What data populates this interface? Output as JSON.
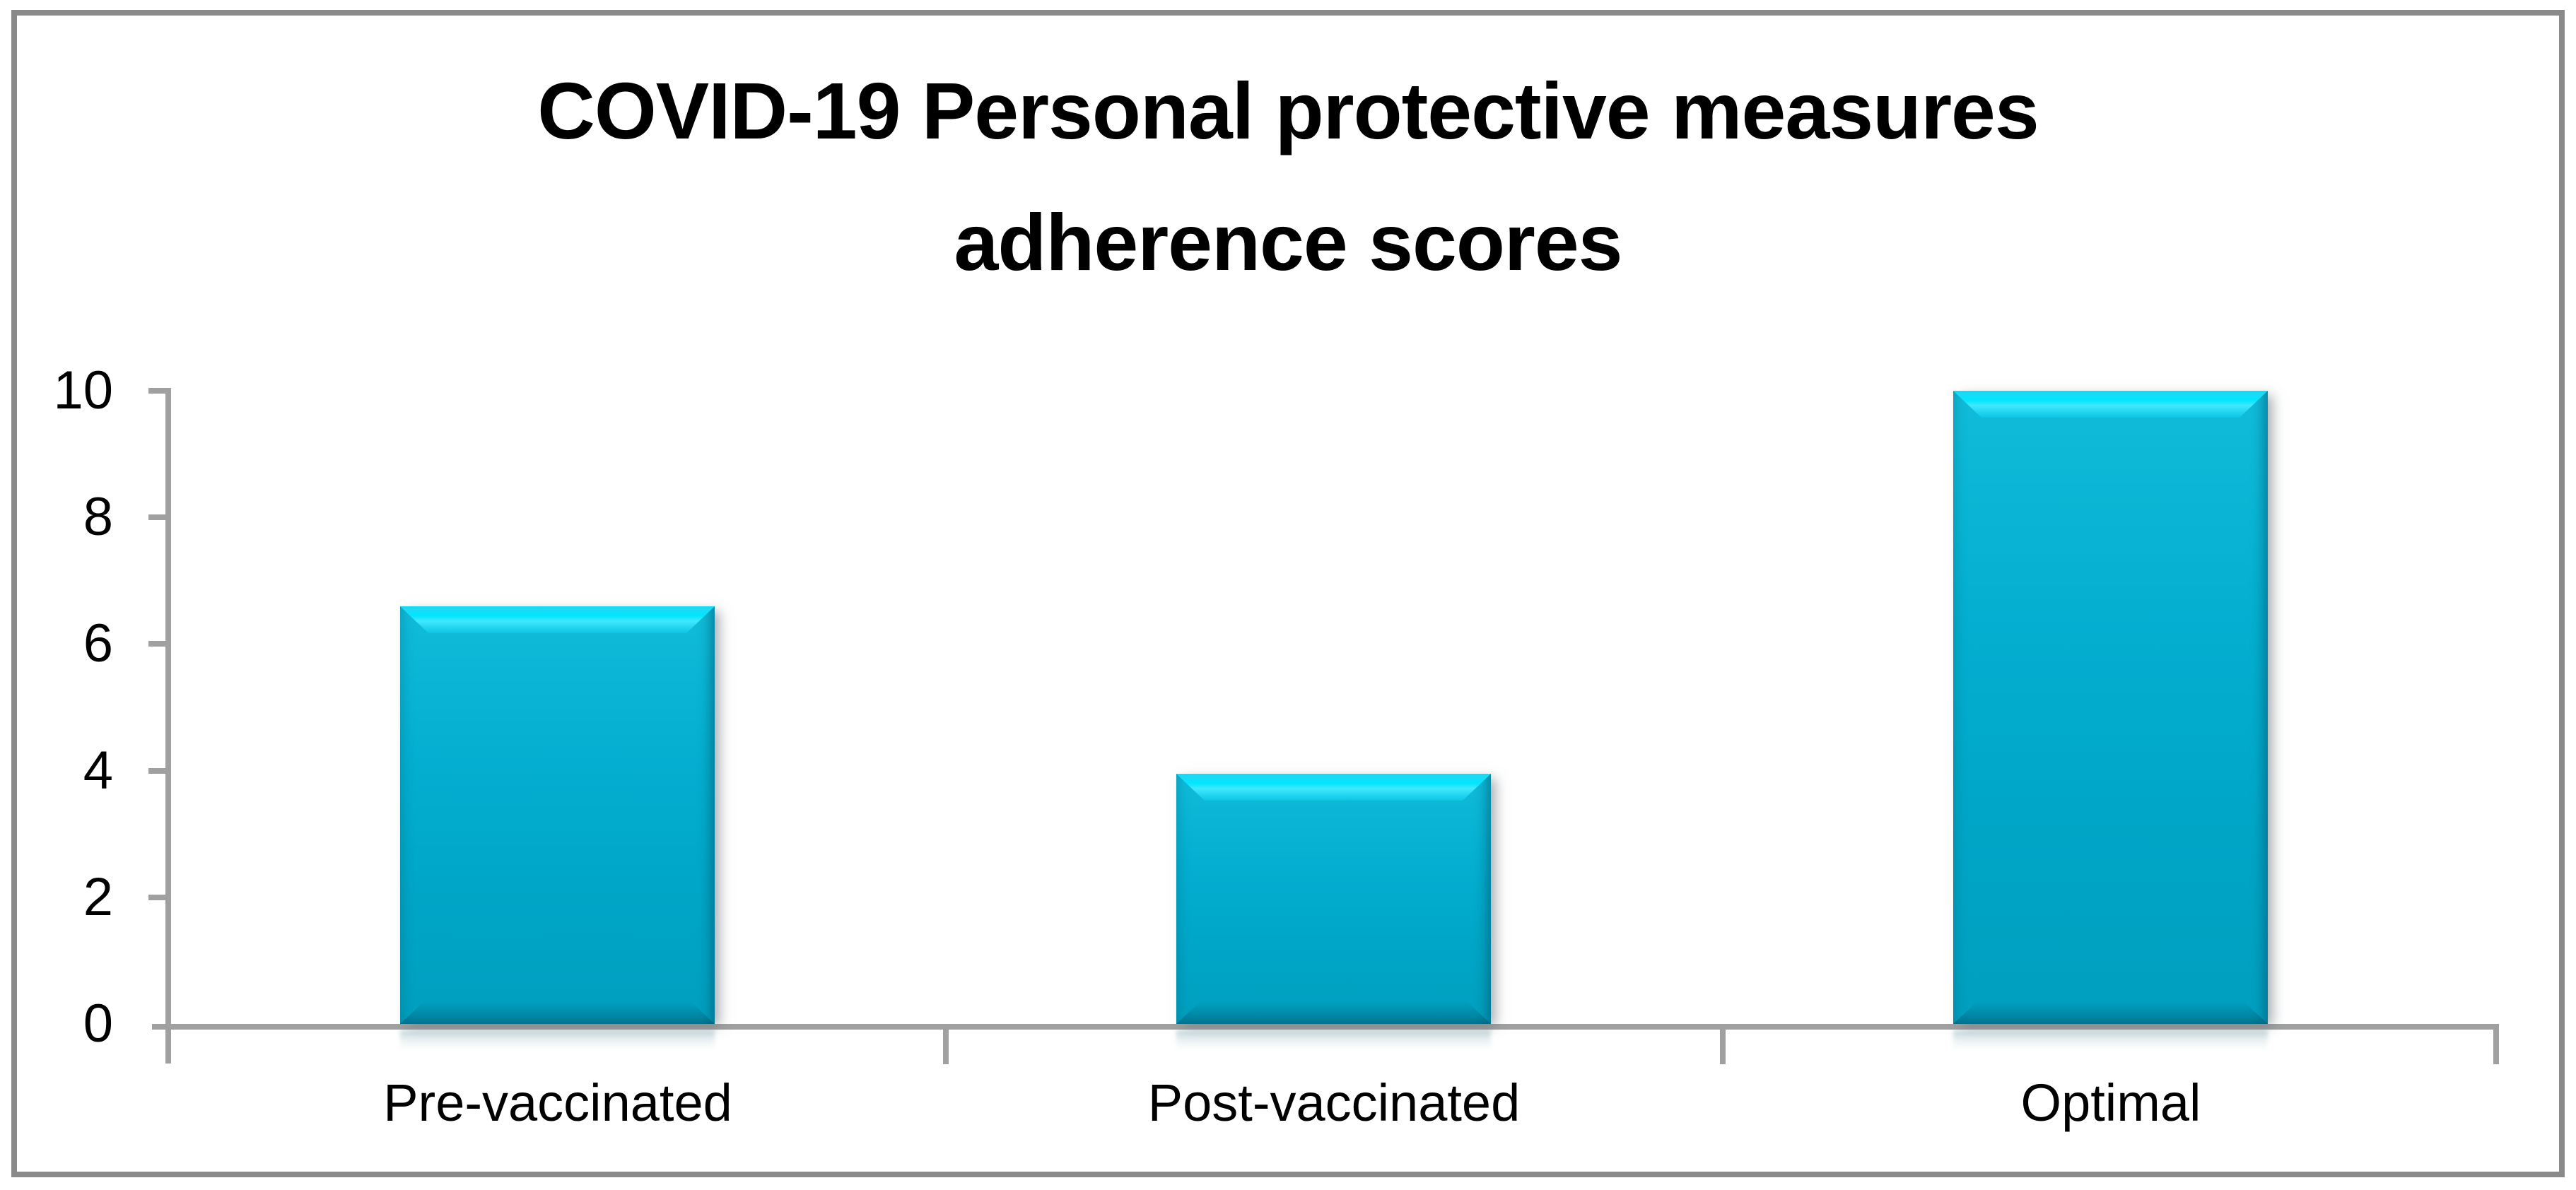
{
  "title_lines": [
    "COVID-19 Personal protective measures",
    "adherence scores"
  ],
  "y_axis_tick_labels": [
    "10",
    "8",
    "6",
    "4",
    "2",
    "0"
  ],
  "chart_data": {
    "type": "bar",
    "title": "COVID-19 Personal protective measures adherence scores",
    "categories": [
      "Pre-vaccinated",
      "Post-vaccinated",
      "Optimal"
    ],
    "values": [
      6.6,
      3.95,
      10
    ],
    "xlabel": "",
    "ylabel": "",
    "ylim": [
      0,
      10
    ],
    "yticks": [
      0,
      2,
      4,
      6,
      8,
      10
    ],
    "grid": false,
    "legend_position": "none",
    "bar_color": "#00aecd",
    "bar_highlight_color": "#00e2fb",
    "bar_edge_shadow_color": "#006e86",
    "axis_color": "#a0a0a0",
    "frame_color": "#8a8a8a",
    "text_color": "#000000",
    "background_color": "#ffffff"
  }
}
